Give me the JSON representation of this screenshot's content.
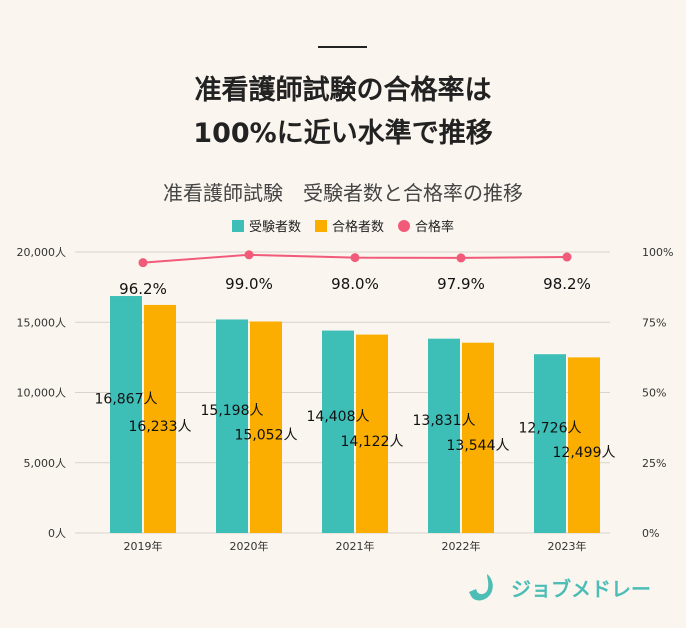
{
  "header": {
    "title_line1": "准看護師試験の合格率は",
    "title_line2": "100%に近い水準で推移"
  },
  "chart_data": {
    "type": "bar",
    "title": "准看護師試験　受験者数と合格率の推移",
    "categories": [
      "2019年",
      "2020年",
      "2021年",
      "2022年",
      "2023年"
    ],
    "series": [
      {
        "name": "受験者数",
        "type": "bar",
        "axis": "left",
        "color": "#3dbfb8",
        "values": [
          16867,
          15198,
          14408,
          13831,
          12726
        ],
        "labels": [
          "16,867人",
          "15,198人",
          "14,408人",
          "13,831人",
          "12,726人"
        ]
      },
      {
        "name": "合格者数",
        "type": "bar",
        "axis": "left",
        "color": "#fbae00",
        "values": [
          16233,
          15052,
          14122,
          13544,
          12499
        ],
        "labels": [
          "16,233人",
          "15,052人",
          "14,122人",
          "13,544人",
          "12,499人"
        ]
      },
      {
        "name": "合格率",
        "type": "line",
        "axis": "right",
        "color": "#f25a7a",
        "values": [
          96.2,
          99.0,
          98.0,
          97.9,
          98.2
        ],
        "labels": [
          "96.2%",
          "99.0%",
          "98.0%",
          "97.9%",
          "98.2%"
        ]
      }
    ],
    "y_left": {
      "ylim": [
        0,
        20000
      ],
      "ticks": [
        "0人",
        "5,000人",
        "10,000人",
        "15,000人",
        "20,000人"
      ]
    },
    "y_right": {
      "ylim": [
        0,
        100
      ],
      "ticks": [
        "0%",
        "25%",
        "50%",
        "75%",
        "100%"
      ]
    },
    "grid": true,
    "legend": "top-center"
  },
  "logo": {
    "text": "ジョブメドレー"
  }
}
